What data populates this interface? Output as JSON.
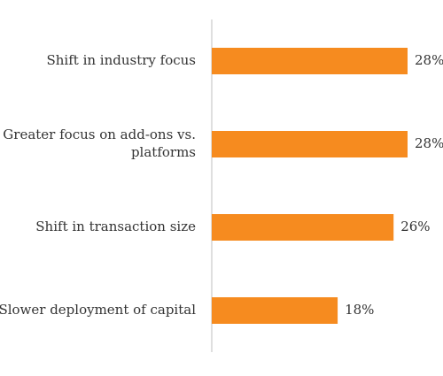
{
  "chart_data": {
    "type": "bar",
    "orientation": "horizontal",
    "categories": [
      [
        "Shift in industry focus"
      ],
      [
        "Greater focus on add-ons vs.",
        "platforms"
      ],
      [
        "Shift in transaction size"
      ],
      [
        "Slower deployment of capital"
      ]
    ],
    "values": [
      28,
      28,
      26,
      18
    ],
    "value_labels": [
      "28%",
      "28%",
      "26%",
      "18%"
    ],
    "xlim": [
      0,
      28
    ],
    "title": "",
    "xlabel": "",
    "ylabel": "",
    "grid": false,
    "legend": "none",
    "colors": {
      "bar": "#F68B1F",
      "axis": "#BFBFBF",
      "text": "#333333"
    }
  }
}
